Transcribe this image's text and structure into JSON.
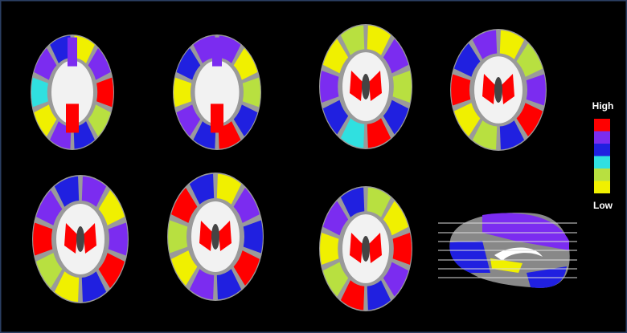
{
  "legend": {
    "high_label": "High",
    "low_label": "Low",
    "colors": [
      "#ff0000",
      "#7b2cf0",
      "#2020e0",
      "#30e0e0",
      "#b8e040",
      "#f0f000"
    ]
  }
}
